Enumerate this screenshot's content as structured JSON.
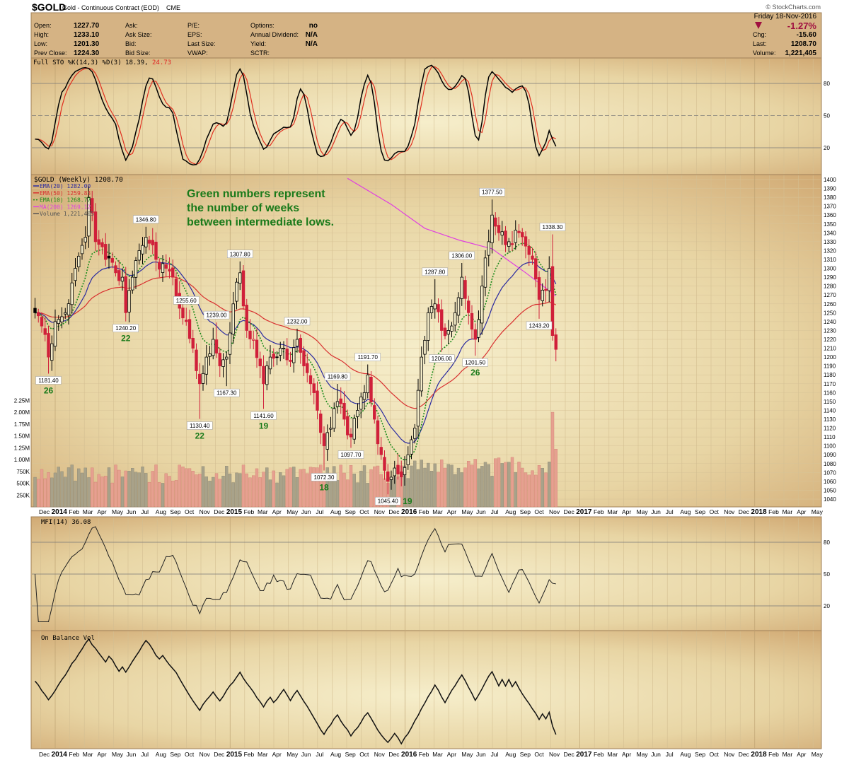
{
  "header": {
    "symbol": "$GOLD",
    "name": "Gold - Continuous Contract (EOD)",
    "exchange": "CME",
    "copyright": "© StockCharts.com",
    "date": "Friday  18-Nov-2016",
    "pct_change": "-1.27%",
    "fields_left": [
      [
        "Open:",
        "1227.70"
      ],
      [
        "High:",
        "1233.10"
      ],
      [
        "Low:",
        "1201.30"
      ],
      [
        "Prev Close:",
        "1224.30"
      ]
    ],
    "fields_mid": [
      "Ask:",
      "Ask Size:",
      "Bid:",
      "Bid Size:"
    ],
    "fields_mid2": [
      "P/E:",
      "EPS:",
      "Last Size:",
      "VWAP:"
    ],
    "fields_right": [
      [
        "Options:",
        "no"
      ],
      [
        "Annual Dividend:",
        "N/A"
      ],
      [
        "Yield:",
        "N/A"
      ],
      [
        "SCTR:",
        ""
      ]
    ],
    "fields_far": [
      [
        "Chg:",
        "-15.60"
      ],
      [
        "Last:",
        "1208.70"
      ],
      [
        "Volume:",
        "1,221,405"
      ]
    ]
  },
  "colors": {
    "down": "#d0203a",
    "up": "#000000",
    "ema20": "#2a2aa0",
    "ema50": "#d83030",
    "ema10": "#1a8a1a",
    "ma200": "#e040e0",
    "green_text": "#1a7a1a",
    "pct": "#a01040"
  },
  "chart_data": {
    "type": "candlestick",
    "title": "$GOLD (Weekly) 1208.70",
    "legend": [
      "EMA(20) 1282.00",
      "EMA(50) 1259.83",
      "EMA(10) 1268.77",
      "MA(200) 1269.12",
      "Volume 1,221,405"
    ],
    "note": [
      "Green numbers represent",
      "the number of weeks",
      "between intermediate lows."
    ],
    "price_axis": {
      "min": 1040,
      "max": 1400,
      "step": 10
    },
    "volume_axis": {
      "labels": [
        "2.25M",
        "2.00M",
        "1.75M",
        "1.50M",
        "1.25M",
        "1.00M",
        "750K",
        "500K",
        "250K"
      ],
      "values": [
        2.25,
        2.0,
        1.75,
        1.5,
        1.25,
        1.0,
        0.75,
        0.5,
        0.25
      ]
    },
    "x_axis_labels": [
      "Dec",
      "2014",
      "Feb",
      "Mar",
      "Apr",
      "May",
      "Jun",
      "Jul",
      "Aug",
      "Sep",
      "Oct",
      "Nov",
      "Dec",
      "2015",
      "Feb",
      "Mar",
      "Apr",
      "May",
      "Jun",
      "Jul",
      "Aug",
      "Sep",
      "Oct",
      "Nov",
      "Dec",
      "2016",
      "Feb",
      "Mar",
      "Apr",
      "May",
      "Jun",
      "Jul",
      "Aug",
      "Sep",
      "Oct",
      "Nov",
      "Dec",
      "2017",
      "Feb",
      "Mar",
      "Apr",
      "May",
      "Jun",
      "Jul",
      "Aug",
      "Sep",
      "Oct",
      "Nov",
      "Dec",
      "2018",
      "Feb",
      "Mar",
      "Apr",
      "May"
    ],
    "week_unit": "weeks since first week of Jan 2014",
    "close_keypoints": [
      [
        -6,
        1250
      ],
      [
        -4,
        1235
      ],
      [
        -2,
        1200
      ],
      [
        0,
        1240
      ],
      [
        3,
        1250
      ],
      [
        6,
        1300
      ],
      [
        9,
        1335
      ],
      [
        10,
        1380
      ],
      [
        12,
        1330
      ],
      [
        15,
        1310
      ],
      [
        18,
        1295
      ],
      [
        20,
        1290
      ],
      [
        21,
        1250
      ],
      [
        23,
        1290
      ],
      [
        25,
        1320
      ],
      [
        27,
        1335
      ],
      [
        30,
        1310
      ],
      [
        33,
        1300
      ],
      [
        35,
        1290
      ],
      [
        37,
        1255
      ],
      [
        39,
        1240
      ],
      [
        41,
        1210
      ],
      [
        43,
        1170
      ],
      [
        45,
        1200
      ],
      [
        47,
        1220
      ],
      [
        49,
        1190
      ],
      [
        51,
        1200
      ],
      [
        53,
        1260
      ],
      [
        55,
        1295
      ],
      [
        57,
        1230
      ],
      [
        59,
        1220
      ],
      [
        61,
        1190
      ],
      [
        62,
        1170
      ],
      [
        64,
        1200
      ],
      [
        67,
        1210
      ],
      [
        70,
        1195
      ],
      [
        72,
        1220
      ],
      [
        74,
        1190
      ],
      [
        76,
        1170
      ],
      [
        78,
        1140
      ],
      [
        80,
        1100
      ],
      [
        82,
        1120
      ],
      [
        84,
        1150
      ],
      [
        86,
        1130
      ],
      [
        88,
        1110
      ],
      [
        90,
        1140
      ],
      [
        92,
        1160
      ],
      [
        93,
        1180
      ],
      [
        95,
        1130
      ],
      [
        97,
        1090
      ],
      [
        99,
        1060
      ],
      [
        101,
        1075
      ],
      [
        103,
        1065
      ],
      [
        105,
        1090
      ],
      [
        107,
        1120
      ],
      [
        109,
        1200
      ],
      [
        111,
        1250
      ],
      [
        113,
        1260
      ],
      [
        115,
        1230
      ],
      [
        117,
        1230
      ],
      [
        119,
        1250
      ],
      [
        121,
        1290
      ],
      [
        123,
        1250
      ],
      [
        125,
        1220
      ],
      [
        127,
        1280
      ],
      [
        129,
        1330
      ],
      [
        130,
        1360
      ],
      [
        132,
        1340
      ],
      [
        135,
        1330
      ],
      [
        138,
        1340
      ],
      [
        140,
        1325
      ],
      [
        142,
        1310
      ],
      [
        144,
        1265
      ],
      [
        146,
        1275
      ],
      [
        147,
        1300
      ],
      [
        148,
        1224.3
      ],
      [
        149,
        1208.7
      ]
    ],
    "ma200_keypoints": [
      [
        86.7,
        1402
      ],
      [
        100,
        1372
      ],
      [
        110,
        1345
      ],
      [
        120,
        1332
      ],
      [
        130,
        1322
      ],
      [
        140,
        1295
      ],
      [
        149,
        1269
      ]
    ],
    "annotations": [
      {
        "week": -2,
        "price": 1181.4,
        "label": "1181.40",
        "pos": "low",
        "weeks": "26"
      },
      {
        "week": 10,
        "price": 1392,
        "label": "",
        "pos": "none"
      },
      {
        "week": 21,
        "price": 1240.2,
        "label": "1240.20",
        "pos": "low",
        "weeks": "22"
      },
      {
        "week": 27,
        "price": 1346.8,
        "label": "1346.80",
        "pos": "high"
      },
      {
        "week": 39,
        "price": 1255.6,
        "label": "1255.60",
        "pos": "high"
      },
      {
        "week": 43,
        "price": 1130.4,
        "label": "1130.40",
        "pos": "low",
        "weeks": "22"
      },
      {
        "week": 48,
        "price": 1239.0,
        "label": "1239.00",
        "pos": "high"
      },
      {
        "week": 51,
        "price": 1167.3,
        "label": "1167.30",
        "pos": "low"
      },
      {
        "week": 55,
        "price": 1307.8,
        "label": "1307.80",
        "pos": "high"
      },
      {
        "week": 62,
        "price": 1141.6,
        "label": "1141.60",
        "pos": "low",
        "weeks": "19"
      },
      {
        "week": 72,
        "price": 1232.0,
        "label": "1232.00",
        "pos": "high"
      },
      {
        "week": 80,
        "price": 1072.3,
        "label": "1072.30",
        "pos": "low",
        "weeks": "18"
      },
      {
        "week": 84,
        "price": 1169.8,
        "label": "1169.80",
        "pos": "high"
      },
      {
        "week": 88,
        "price": 1097.7,
        "label": "1097.70",
        "pos": "low"
      },
      {
        "week": 93,
        "price": 1191.7,
        "label": "1191.70",
        "pos": "high"
      },
      {
        "week": 99,
        "price": 1045.4,
        "label": "1045.40",
        "pos": "low",
        "weeks": "19"
      },
      {
        "week": 113,
        "price": 1287.8,
        "label": "1287.80",
        "pos": "high"
      },
      {
        "week": 115,
        "price": 1206.0,
        "label": "1206.00",
        "pos": "low"
      },
      {
        "week": 121,
        "price": 1306.0,
        "label": "1306.00",
        "pos": "high"
      },
      {
        "week": 125,
        "price": 1201.5,
        "label": "1201.50",
        "pos": "low",
        "weeks": "26"
      },
      {
        "week": 130,
        "price": 1377.5,
        "label": "1377.50",
        "pos": "high"
      },
      {
        "week": 144,
        "price": 1243.2,
        "label": "1243.20",
        "pos": "low"
      },
      {
        "week": 148,
        "price": 1338.3,
        "label": "1338.30",
        "pos": "high"
      }
    ],
    "last_volumes_millions": [
      2.0,
      1.22
    ],
    "indicators": {
      "sto": {
        "label": "Full STO %K(14,3) %D(3) 18.39,",
        "d_value": "24.73",
        "levels": [
          80,
          50,
          20
        ]
      },
      "mfi": {
        "label": "MFI(14) 36.08",
        "levels": [
          80,
          50,
          20
        ]
      },
      "obv": {
        "label": "On Balance Vol"
      }
    }
  }
}
